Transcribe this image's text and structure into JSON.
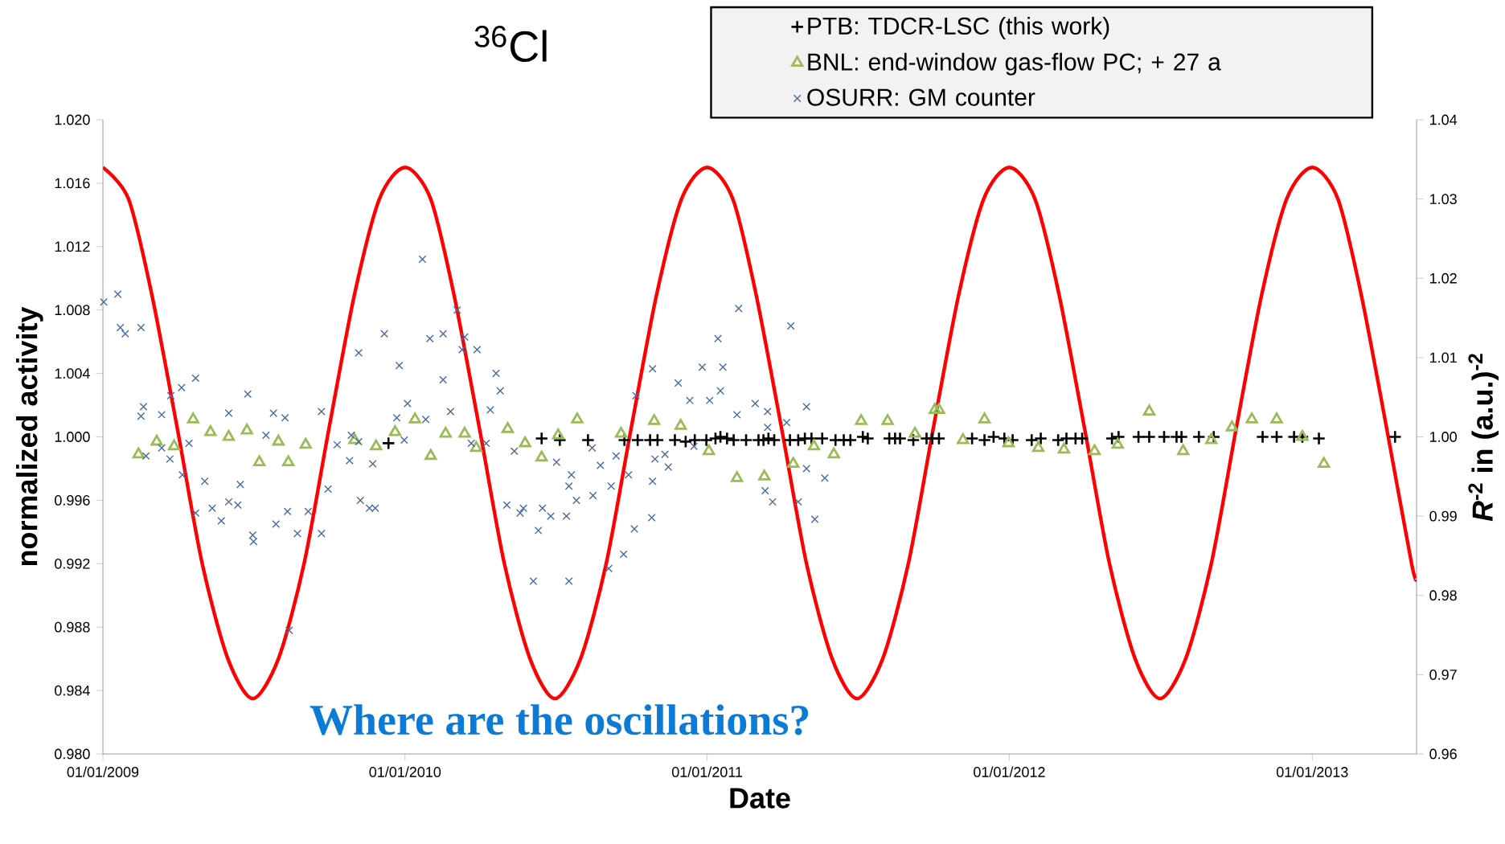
{
  "chart_data": {
    "type": "scatter",
    "title": "$^{36}$Cl",
    "xlabel": "Date",
    "ylabel": "normalized activity",
    "y2label": "*R*$^{-2}$ in (a.u.)$^{-2}$",
    "annotations": [
      "Where are the oscillations?"
    ],
    "legend": "top right",
    "xlim": [
      "2009-01-01",
      "2013-05-07"
    ],
    "ylim": [
      0.98,
      1.02
    ],
    "y2lim": [
      0.96,
      1.04
    ],
    "xticks": [
      {
        "value": "2009-01-01",
        "label": "01/01/2009"
      },
      {
        "value": "2010-01-01",
        "label": "01/01/2010"
      },
      {
        "value": "2011-01-01",
        "label": "01/01/2011"
      },
      {
        "value": "2012-01-01",
        "label": "01/01/2012"
      },
      {
        "value": "2013-01-01",
        "label": "01/01/2013"
      }
    ],
    "yticks": [
      {
        "value": 0.98,
        "label": "0.980"
      },
      0.984,
      0.988,
      0.992,
      0.996,
      {
        "value": 1.0,
        "label": "1.000"
      },
      1.004,
      1.008,
      1.012,
      1.016,
      {
        "value": 1.02,
        "label": "1.020"
      }
    ],
    "y2ticks": [
      0.96,
      0.97,
      0.98,
      0.99,
      {
        "value": 1.0,
        "label": "1.00"
      },
      1.01,
      1.02,
      1.03,
      1.04
    ],
    "series": [
      {
        "name": "PTB: TDCR-LSC (this work)",
        "marker": "plus",
        "color": "#000000",
        "x": [
          "2009-12-12",
          "2010-06-15",
          "2010-07-07",
          "2010-08-10",
          "2010-09-23",
          "2010-10-09",
          "2010-10-24",
          "2010-11-02",
          "2010-11-23",
          "2010-12-06",
          "2010-12-17",
          "2010-12-31",
          "2011-01-11",
          "2011-01-17",
          "2011-01-25",
          "2011-02-02",
          "2011-02-17",
          "2011-03-04",
          "2011-03-10",
          "2011-03-16",
          "2011-03-23",
          "2011-04-11",
          "2011-04-21",
          "2011-04-29",
          "2011-05-07",
          "2011-05-20",
          "2011-06-05",
          "2011-06-15",
          "2011-06-23",
          "2011-07-08",
          "2011-07-14",
          "2011-08-09",
          "2011-08-16",
          "2011-08-22",
          "2011-09-07",
          "2011-09-23",
          "2011-09-30",
          "2011-10-08",
          "2011-11-17",
          "2011-12-02",
          "2011-12-13",
          "2011-12-26",
          "2012-01-05",
          "2012-01-28",
          "2012-02-08",
          "2012-02-29",
          "2012-03-10",
          "2012-03-21",
          "2012-03-29",
          "2012-05-04",
          "2012-05-12",
          "2012-06-05",
          "2012-06-18",
          "2012-07-06",
          "2012-07-21",
          "2012-07-27",
          "2012-08-17",
          "2012-09-04",
          "2012-11-02",
          "2012-11-19",
          "2012-12-10",
          "2012-12-20",
          "2013-01-09",
          "2013-04-11"
        ],
        "values": [
          0.9996,
          0.9999,
          0.9998,
          0.9998,
          0.9998,
          0.9998,
          0.9998,
          0.9998,
          0.9998,
          0.9997,
          0.9998,
          0.9998,
          0.9999,
          1.0,
          0.9999,
          0.9998,
          0.9998,
          0.9998,
          0.9998,
          0.9999,
          0.9998,
          0.9998,
          0.9998,
          0.9999,
          0.9999,
          0.9999,
          0.9998,
          0.9998,
          0.9998,
          1.0,
          0.9999,
          0.9999,
          0.9999,
          0.9999,
          0.9998,
          0.9999,
          0.9999,
          0.9999,
          0.9999,
          0.9998,
          1.0,
          0.9999,
          0.9998,
          0.9998,
          0.9999,
          0.9998,
          0.9999,
          0.9999,
          0.9999,
          0.9999,
          1.0,
          1.0,
          1.0,
          1.0,
          1.0,
          1.0,
          1.0,
          1.0,
          1.0,
          1.0,
          1.0,
          1.0,
          0.9999,
          1.0
        ]
      },
      {
        "name": "BNL: end-window gas-flow PC; + 27 a",
        "marker": "triangle",
        "color": "#9bbb59",
        "x": [
          "2009-02-13",
          "2009-03-07",
          "2009-03-28",
          "2009-04-20",
          "2009-05-11",
          "2009-06-02",
          "2009-06-24",
          "2009-07-09",
          "2009-08-01",
          "2009-08-13",
          "2009-09-03",
          "2009-11-01",
          "2009-11-27",
          "2009-12-20",
          "2010-01-13",
          "2010-02-01",
          "2010-02-19",
          "2010-03-14",
          "2010-03-28",
          "2010-05-05",
          "2010-05-26",
          "2010-06-15",
          "2010-07-05",
          "2010-07-28",
          "2010-09-19",
          "2010-10-29",
          "2010-11-30",
          "2011-01-03",
          "2011-02-06",
          "2011-03-11",
          "2011-04-15",
          "2011-05-10",
          "2011-06-03",
          "2011-07-06",
          "2011-08-07",
          "2011-09-09",
          "2011-10-03",
          "2011-10-08",
          "2011-11-06",
          "2011-12-02",
          "2011-12-31",
          "2012-02-05",
          "2012-03-07",
          "2012-04-13",
          "2012-05-11",
          "2012-06-18",
          "2012-07-29",
          "2012-09-01",
          "2012-09-26",
          "2012-10-20",
          "2012-11-19",
          "2012-12-20",
          "2013-01-15"
        ],
        "values": [
          0.9989,
          0.9997,
          0.9994,
          1.0011,
          1.0003,
          1.0,
          1.0004,
          0.9984,
          0.9997,
          0.9984,
          0.9995,
          0.9998,
          0.9994,
          1.0003,
          1.0011,
          0.9988,
          1.0002,
          1.0002,
          0.9993,
          1.0005,
          0.9996,
          0.9987,
          1.0001,
          1.0011,
          1.0002,
          1.001,
          1.0007,
          0.9991,
          0.9974,
          0.9975,
          0.9983,
          0.9994,
          0.9989,
          1.001,
          1.001,
          1.0002,
          1.0017,
          1.0017,
          0.9998,
          1.0011,
          0.9996,
          0.9993,
          0.9992,
          0.9991,
          0.9995,
          1.0016,
          0.9991,
          0.9998,
          1.0006,
          1.0011,
          1.0011,
          1.0,
          0.9983
        ]
      },
      {
        "name": "OSURR: GM counter",
        "marker": "cross",
        "color": "#4a6a9a",
        "x": [
          "2009-01-02",
          "2009-01-19",
          "2009-01-22",
          "2009-01-28",
          "2009-02-16",
          "2009-02-19",
          "2009-02-16",
          "2009-02-22",
          "2009-03-13",
          "2009-03-13",
          "2009-03-23",
          "2009-03-24",
          "2009-04-06",
          "2009-04-07",
          "2009-04-15",
          "2009-04-23",
          "2009-04-23",
          "2009-05-04",
          "2009-05-13",
          "2009-05-24",
          "2009-06-02",
          "2009-06-02",
          "2009-06-13",
          "2009-06-16",
          "2009-06-25",
          "2009-07-01",
          "2009-07-02",
          "2009-07-17",
          "2009-07-26",
          "2009-07-29",
          "2009-08-09",
          "2009-08-12",
          "2009-08-24",
          "2009-09-06",
          "2009-09-22",
          "2009-09-22",
          "2009-09-30",
          "2009-08-14",
          "2009-10-11",
          "2009-10-26",
          "2009-10-28",
          "2009-11-06",
          "2009-11-06",
          "2009-11-08",
          "2009-11-19",
          "2009-11-26",
          "2009-11-23",
          "2009-12-07",
          "2009-12-22",
          "2009-12-25",
          "2009-12-31",
          "2010-01-04",
          "2010-01-22",
          "2010-01-26",
          "2010-01-31",
          "2010-02-16",
          "2010-02-16",
          "2010-02-25",
          "2010-03-05",
          "2010-03-11",
          "2010-03-14",
          "2010-03-22",
          "2010-03-29",
          "2010-04-09",
          "2010-04-21",
          "2010-04-26",
          "2010-04-14",
          "2010-05-13",
          "2010-05-04",
          "2010-05-20",
          "2010-05-24",
          "2010-06-16",
          "2010-06-26",
          "2010-07-15",
          "2010-06-11",
          "2010-06-05",
          "2010-07-18",
          "2010-07-03",
          "2010-07-21",
          "2010-07-18",
          "2010-07-27",
          "2010-08-16",
          "2010-08-15",
          "2010-08-25",
          "2010-09-13",
          "2010-09-07",
          "2010-09-28",
          "2010-10-07",
          "2010-10-27",
          "2010-11-27",
          "2010-12-11",
          "2010-12-26",
          "2011-01-04",
          "2011-01-14",
          "2011-01-20",
          "2011-01-17",
          "2011-02-08",
          "2011-02-06",
          "2011-02-28",
          "2011-03-15",
          "2011-03-15",
          "2011-04-07",
          "2011-04-12",
          "2011-05-01",
          "2011-05-01",
          "2011-05-23",
          "2011-03-12",
          "2011-03-21",
          "2011-04-21",
          "2011-05-11",
          "2010-10-30",
          "2010-11-11",
          "2010-11-15",
          "2010-10-27",
          "2010-10-26",
          "2010-10-05",
          "2010-09-22",
          "2010-09-04",
          "2010-12-16"
        ],
        "values": [
          1.0085,
          1.009,
          1.0069,
          1.0065,
          1.0069,
          1.0019,
          1.0013,
          0.9988,
          1.0014,
          0.9993,
          0.9986,
          1.0026,
          1.0031,
          0.9976,
          0.9996,
          1.0037,
          0.9952,
          0.9972,
          0.9955,
          0.9947,
          1.0015,
          0.9959,
          0.9957,
          0.997,
          1.0027,
          0.9938,
          0.9934,
          1.0001,
          1.0015,
          0.9945,
          1.0012,
          0.9953,
          0.9939,
          0.9953,
          0.9939,
          1.0016,
          0.9967,
          0.9878,
          0.9995,
          0.9985,
          1.0001,
          0.9997,
          1.0053,
          0.996,
          0.9955,
          0.9955,
          0.9983,
          1.0065,
          1.0012,
          1.0045,
          0.9998,
          1.0021,
          1.0112,
          1.0011,
          1.0062,
          1.0065,
          1.0036,
          1.0016,
          1.008,
          1.0055,
          1.0063,
          0.9996,
          1.0055,
          0.9996,
          1.004,
          1.0029,
          1.0017,
          0.9991,
          0.9957,
          0.9952,
          0.9955,
          0.9955,
          0.995,
          0.995,
          0.9941,
          0.9909,
          0.9909,
          0.9984,
          0.9976,
          0.9969,
          0.996,
          0.9963,
          0.9993,
          0.9982,
          0.9988,
          0.9969,
          0.9976,
          1.0026,
          1.0043,
          1.0034,
          1.0023,
          1.0044,
          1.0023,
          1.0062,
          1.0044,
          1.0029,
          1.0081,
          1.0014,
          1.0021,
          1.0016,
          1.0006,
          1.0009,
          1.007,
          1.0019,
          0.998,
          0.9974,
          0.9966,
          0.9959,
          0.9959,
          0.9948,
          0.9986,
          0.9989,
          0.9981,
          0.9972,
          0.9949,
          0.9942,
          0.9926,
          0.9917,
          0.9994
        ]
      },
      {
        "type": "line",
        "axis": "y2",
        "marker": "none",
        "color": "#ff0000",
        "x": [
          "2009-01-01",
          "2009-02-01",
          "2009-03-01",
          "2009-04-01",
          "2009-05-01",
          "2009-06-01",
          "2009-07-01",
          "2009-08-01",
          "2009-09-01",
          "2009-10-01",
          "2009-11-01",
          "2009-12-01",
          "2010-01-01",
          "2010-02-01",
          "2010-03-01",
          "2010-04-01",
          "2010-05-01",
          "2010-06-01",
          "2010-07-01",
          "2010-08-01",
          "2010-09-01",
          "2010-10-01",
          "2010-11-01",
          "2010-12-01",
          "2011-01-01",
          "2011-02-01",
          "2011-03-01",
          "2011-04-01",
          "2011-05-01",
          "2011-06-01",
          "2011-07-01",
          "2011-08-01",
          "2011-09-01",
          "2011-10-01",
          "2011-11-01",
          "2011-12-01",
          "2012-01-01",
          "2012-02-01",
          "2012-03-01",
          "2012-04-01",
          "2012-05-01",
          "2012-06-01",
          "2012-07-01",
          "2012-08-01",
          "2012-09-01",
          "2012-10-01",
          "2012-11-01",
          "2012-12-01",
          "2013-01-01",
          "2013-02-01",
          "2013-03-01",
          "2013-04-01",
          "2013-05-01",
          "2013-05-07"
        ],
        "values": [
          1.034,
          1.03,
          1.018,
          1.001,
          0.984,
          0.972,
          0.967,
          0.972,
          0.984,
          1.001,
          1.018,
          1.03,
          1.034,
          1.03,
          1.018,
          1.001,
          0.984,
          0.972,
          0.967,
          0.972,
          0.984,
          1.001,
          1.018,
          1.03,
          1.034,
          1.03,
          1.018,
          1.001,
          0.984,
          0.972,
          0.967,
          0.972,
          0.984,
          1.001,
          1.018,
          1.03,
          1.034,
          1.03,
          1.018,
          1.001,
          0.984,
          0.972,
          0.967,
          0.972,
          0.984,
          1.001,
          1.018,
          1.03,
          1.034,
          1.03,
          1.018,
          1.001,
          0.984,
          0.982
        ]
      }
    ]
  }
}
